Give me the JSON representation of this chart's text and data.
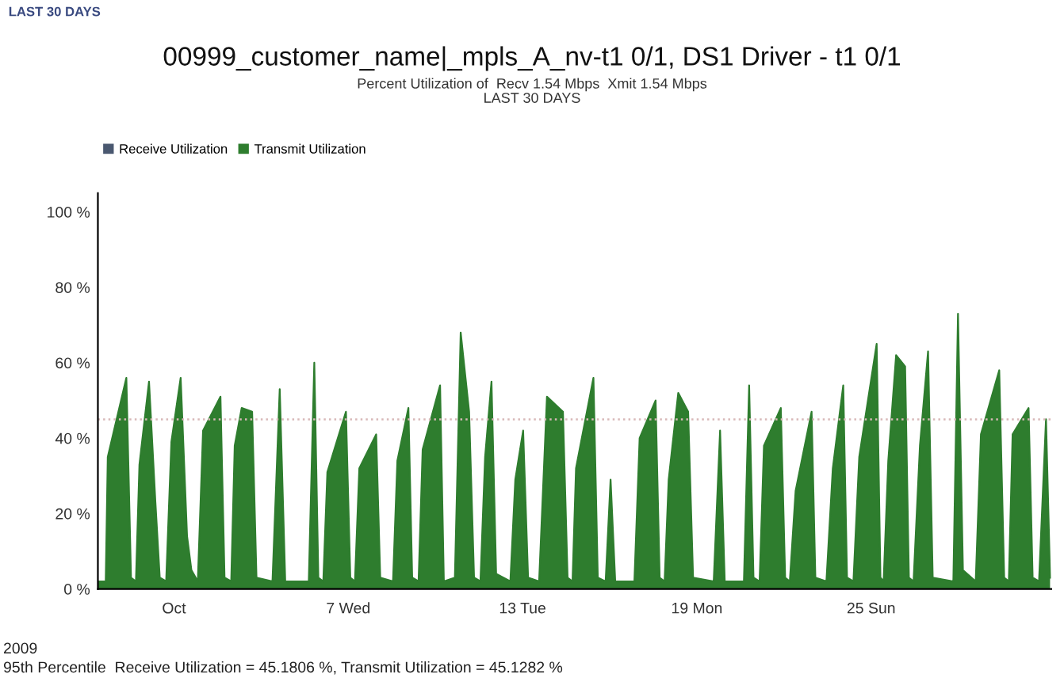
{
  "chart_data": {
    "type": "area",
    "title": "00999_customer_name|_mpls_A_nv-t1 0/1, DS1 Driver - t1 0/1",
    "subtitle": "Percent Utilization of  Recv 1.54 Mbps  Xmit 1.54 Mbps\nLAST 30 DAYS",
    "annotations": [
      "LAST 30 DAYS",
      "2009",
      "95th Percentile  Receive Utilization = 45.1806 %, Transmit Utilization = 45.1282 %"
    ],
    "x": [
      -1.62,
      -1.35,
      -1.28,
      -0.64,
      -0.48,
      -0.31,
      -0.19,
      0.14,
      0.36,
      0.51,
      0.73,
      0.91,
      1.23,
      1.45,
      1.6,
      1.82,
      2.0,
      2.6,
      2.74,
      2.97,
      3.09,
      3.33,
      3.69,
      3.84,
      4.39,
      4.64,
      4.83,
      5.64,
      5.83,
      5.97,
      6.14,
      6.28,
      6.92,
      7.07,
      7.23,
      7.38,
      7.96,
      8.1,
      8.54,
      8.69,
      9.07,
      9.2,
      9.42,
      9.56,
      10.16,
      10.29,
      10.67,
      10.87,
      11.16,
      11.33,
      11.55,
      11.71,
      11.93,
      12.09,
      12.58,
      12.75,
      13.02,
      13.19,
      13.57,
      13.84,
      14.39,
      14.55,
      14.72,
      14.84,
      15.44,
      15.59,
      15.86,
      16.03,
      16.19,
      16.85,
      17.03,
      17.58,
      17.72,
      17.89,
      18.03,
      18.36,
      18.7,
      18.87,
      19.58,
      19.8,
      19.96,
      20.62,
      20.8,
      20.95,
      21.16,
      21.31,
      21.89,
      22.04,
      22.2,
      22.4,
      22.95,
      23.08,
      23.46,
      23.68,
      24.04,
      24.17,
      24.39,
      24.59,
      25.19,
      25.32,
      25.43,
      25.59,
      25.86,
      26.17,
      26.3,
      26.46,
      26.68,
      26.96,
      27.12,
      27.83,
      27.99,
      28.16,
      28.6,
      28.78,
      29.41,
      29.58,
      29.74,
      29.87,
      30.42,
      30.56,
      30.78,
      31.02,
      31.16
    ],
    "series": [
      {
        "name": "Receive Utilization",
        "color": "#4a5870",
        "values": [
          null,
          null,
          null,
          null,
          null,
          null,
          null,
          null,
          null,
          null,
          null,
          null,
          null,
          null,
          null,
          null,
          null,
          null,
          null,
          null,
          null,
          null,
          null,
          null,
          null,
          null,
          null,
          null,
          null,
          null,
          null,
          null,
          null,
          null,
          null,
          null,
          null,
          null,
          null,
          null,
          null,
          null,
          null,
          null,
          null,
          null,
          null,
          null,
          null,
          null,
          null,
          null,
          null,
          null,
          null,
          null,
          null,
          null,
          null,
          null,
          null,
          null,
          null,
          null,
          null,
          null,
          null,
          null,
          null,
          null,
          null,
          null,
          null,
          null,
          null,
          null,
          null,
          null,
          null,
          null,
          null,
          null,
          null,
          null,
          null,
          null,
          null,
          null,
          null,
          null,
          null,
          null,
          null,
          null,
          null,
          null,
          null,
          null,
          null,
          null,
          null,
          null,
          null,
          null,
          null,
          null,
          null,
          null,
          null,
          null,
          null,
          null,
          null,
          null,
          null,
          null,
          null,
          null,
          null,
          null,
          null,
          null,
          null
        ]
      },
      {
        "name": "Transmit Utilization",
        "color": "#2e7d2e",
        "values": [
          2,
          2,
          35,
          56,
          3,
          2,
          33,
          55,
          23,
          3,
          2,
          39,
          56,
          14,
          5,
          2,
          42,
          51,
          3,
          2,
          38,
          48,
          47,
          3,
          2,
          53,
          2,
          2,
          60,
          3,
          2,
          31,
          47,
          3,
          2,
          32,
          41,
          3,
          2,
          34,
          48,
          3,
          2,
          37,
          54,
          2,
          3,
          68,
          47,
          3,
          2,
          35,
          55,
          4,
          2,
          29,
          42,
          3,
          2,
          51,
          47,
          3,
          2,
          32,
          56,
          3,
          2,
          29,
          2,
          2,
          40,
          50,
          3,
          2,
          29,
          52,
          47,
          3,
          2,
          42,
          2,
          2,
          54,
          3,
          2,
          38,
          48,
          3,
          2,
          26,
          47,
          3,
          2,
          32,
          54,
          3,
          2,
          35,
          65,
          3,
          2,
          34,
          62,
          59,
          3,
          2,
          38,
          63,
          3,
          2,
          73,
          5,
          2,
          41,
          58,
          3,
          2,
          41,
          48,
          3,
          2,
          45,
          3
        ]
      }
    ],
    "xlim": [
      -1.62,
      31.2
    ],
    "xticks": [
      {
        "value": 1,
        "label": "Oct"
      },
      {
        "value": 7,
        "label": "7 Wed"
      },
      {
        "value": 13,
        "label": "13 Tue"
      },
      {
        "value": 19,
        "label": "19 Mon"
      },
      {
        "value": 25,
        "label": "25 Sun"
      }
    ],
    "ylim": [
      0,
      105
    ],
    "yticks": [
      {
        "value": 0,
        "label": "0 %"
      },
      {
        "value": 20,
        "label": "20 %"
      },
      {
        "value": 40,
        "label": "40 %"
      },
      {
        "value": 60,
        "label": "60 %"
      },
      {
        "value": 80,
        "label": "80 %"
      },
      {
        "value": 100,
        "label": "100 %"
      }
    ],
    "ref_lines": [
      {
        "axis": "y",
        "value": 45,
        "color": "#d8b8b8",
        "line_style": "dotted"
      }
    ],
    "legend": "top left",
    "grid": false
  }
}
